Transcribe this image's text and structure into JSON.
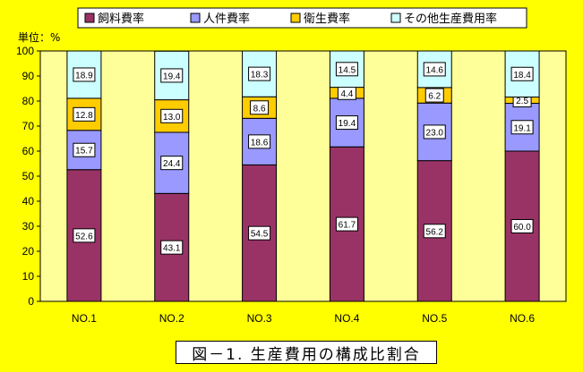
{
  "chart_data": {
    "type": "bar",
    "stacked": true,
    "title": "図－1. 生産費用の構成比割合",
    "ylabel": "単位：%",
    "ylim": [
      0,
      100
    ],
    "yticks": [
      0,
      10,
      20,
      30,
      40,
      50,
      60,
      70,
      80,
      90,
      100
    ],
    "grid": false,
    "legend_position": "top",
    "categories": [
      "NO.1",
      "NO.2",
      "NO.3",
      "NO.4",
      "NO.5",
      "NO.6"
    ],
    "series": [
      {
        "name": "飼料費率",
        "color": "#993366",
        "values": [
          52.6,
          43.1,
          54.5,
          61.7,
          56.2,
          60.0
        ],
        "labels": [
          "52.6",
          "43.1",
          "54.5",
          "61.7",
          "56.2",
          "60.0"
        ]
      },
      {
        "name": "人件費率",
        "color": "#9999FF",
        "values": [
          15.7,
          24.4,
          18.6,
          19.4,
          23.0,
          19.1
        ],
        "labels": [
          "15.7",
          "24.4",
          "18.6",
          "19.4",
          "23.0",
          "19.1"
        ]
      },
      {
        "name": "衛生費率",
        "color": "#FFCC00",
        "values": [
          12.8,
          13.0,
          8.6,
          4.4,
          6.2,
          2.5
        ],
        "labels": [
          "12.8",
          "13.0",
          "8.6",
          "4.4",
          "6.2",
          "2.5"
        ]
      },
      {
        "name": "その他生産費用率",
        "color": "#CCFFFF",
        "values": [
          18.9,
          19.4,
          18.3,
          14.5,
          14.6,
          18.4
        ],
        "labels": [
          "18.9",
          "19.4",
          "18.3",
          "14.5",
          "14.6",
          "18.4"
        ]
      }
    ]
  },
  "colors": {
    "background": "#FFFF00",
    "plot_area": "#FFFF99"
  }
}
